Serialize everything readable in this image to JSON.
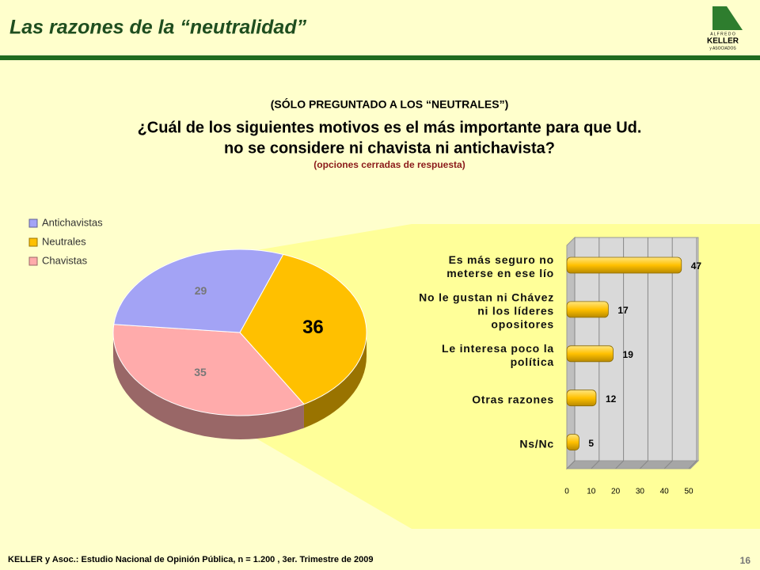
{
  "header": {
    "title": "Las razones de la “neutralidad”",
    "logo": [
      "A L F R E D O",
      "KELLER",
      "y ASOCIADOS"
    ]
  },
  "question": {
    "note": "(SÓLO PREGUNTADO A LOS “NEUTRALES”)",
    "lines": [
      "¿Cuál de los siguientes motivos es el más importante para que Ud.",
      "no se considere ni chavista ni antichavista?"
    ],
    "subnote": "(opciones cerradas de respuesta)"
  },
  "footer": {
    "source": "KELLER y Asoc.: Estudio Nacional de Opinión Pública, n = 1.200 , 3er. Trimestre de 2009",
    "page": "16"
  },
  "chart_data": [
    {
      "type": "pie",
      "categories": [
        "Antichavistas",
        "Neutrales",
        "Chavistas"
      ],
      "values": [
        29,
        36,
        35
      ],
      "colors": [
        "#a3a3f5",
        "#ffc000",
        "#ffabab"
      ],
      "legend": "top-left"
    },
    {
      "type": "hbar",
      "categories": [
        "Es más seguro no meterse en ese lío",
        "No le gustan ni Chávez ni los líderes opositores",
        "Le interesa poco la política",
        "Otras razones",
        "Ns/Nc"
      ],
      "values": [
        47,
        17,
        19,
        12,
        5
      ],
      "color": "#ffc000",
      "xlim": [
        0,
        50
      ],
      "xticks": [
        0,
        10,
        20,
        30,
        40,
        50
      ],
      "grid": true
    }
  ]
}
